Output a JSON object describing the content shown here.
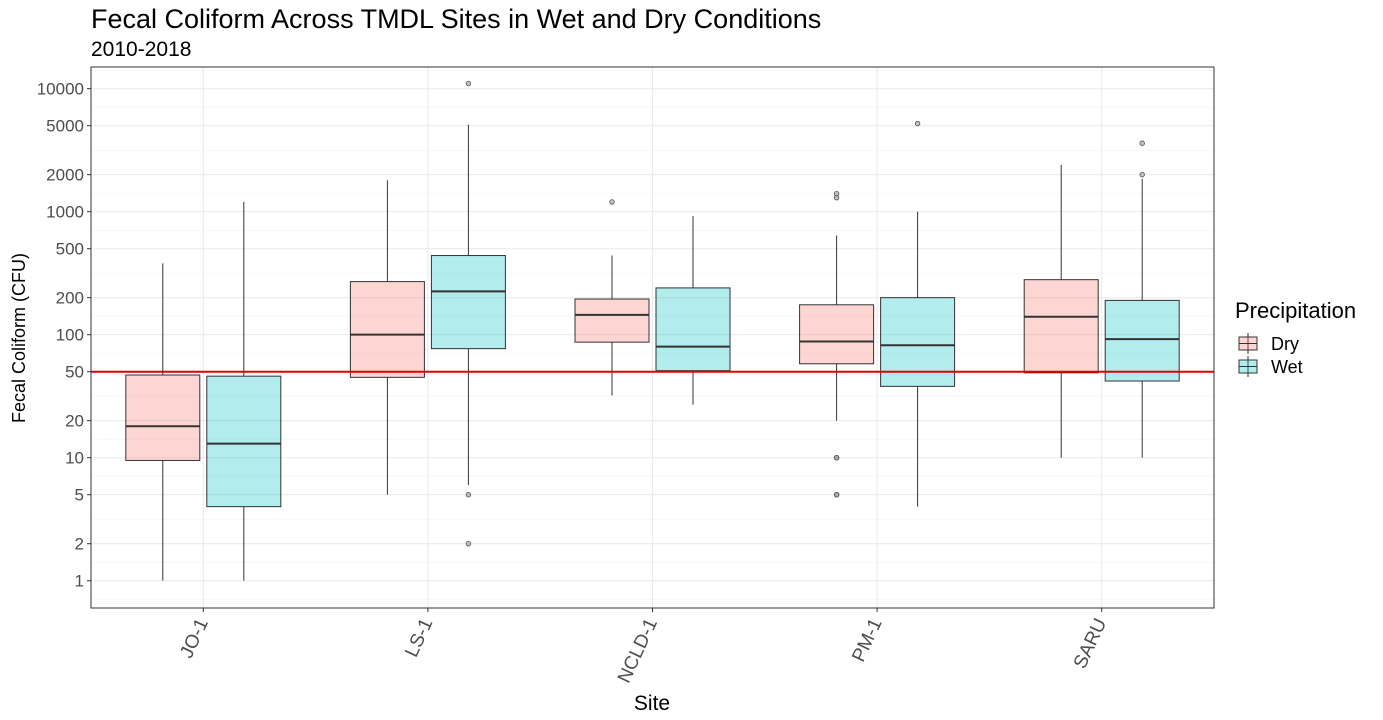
{
  "chart_data": {
    "type": "box",
    "title": "Fecal Coliform Across TMDL Sites in Wet and Dry Conditions",
    "subtitle": "2010-2018",
    "xlabel": "Site",
    "ylabel": "Fecal Coliform (CFU)",
    "y_scale": "log10",
    "ylim": [
      0.6,
      15000
    ],
    "y_ticks": [
      1,
      2,
      5,
      10,
      20,
      50,
      100,
      200,
      500,
      1000,
      2000,
      5000,
      10000
    ],
    "y_tick_labels": [
      "1",
      "2",
      "5",
      "10",
      "20",
      "50",
      "100",
      "200",
      "500",
      "1000",
      "2000",
      "5000",
      "10000"
    ],
    "categories": [
      "JO-1",
      "LS-1",
      "NCLD-1",
      "PM-1",
      "SARU"
    ],
    "legend": {
      "title": "Precipitation",
      "position": "right",
      "entries": [
        {
          "label": "Dry",
          "color": "#F8766D"
        },
        {
          "label": "Wet",
          "color": "#00BFC4"
        }
      ]
    },
    "reference_line": {
      "y": 50,
      "color": "#e00000"
    },
    "grid": true,
    "series": [
      {
        "name": "Dry",
        "color": "#F8766D",
        "boxes": [
          {
            "site": "JO-1",
            "min": 1,
            "q1": 9.5,
            "median": 18,
            "q3": 47,
            "max": 380,
            "outliers": []
          },
          {
            "site": "LS-1",
            "min": 5,
            "q1": 45,
            "median": 100,
            "q3": 270,
            "max": 1800,
            "outliers": []
          },
          {
            "site": "NCLD-1",
            "min": 32,
            "q1": 87,
            "median": 145,
            "q3": 195,
            "max": 440,
            "outliers": [
              1200
            ]
          },
          {
            "site": "PM-1",
            "min": 20,
            "q1": 58,
            "median": 88,
            "q3": 175,
            "max": 640,
            "outliers": [
              1400,
              1300,
              10,
              10,
              5,
              5
            ]
          },
          {
            "site": "SARU",
            "min": 10,
            "q1": 49,
            "median": 140,
            "q3": 280,
            "max": 2400,
            "outliers": []
          }
        ]
      },
      {
        "name": "Wet",
        "color": "#00BFC4",
        "boxes": [
          {
            "site": "JO-1",
            "min": 1,
            "q1": 4,
            "median": 13,
            "q3": 46,
            "max": 1200,
            "outliers": []
          },
          {
            "site": "LS-1",
            "min": 6,
            "q1": 77,
            "median": 225,
            "q3": 440,
            "max": 5100,
            "outliers": [
              11000,
              5,
              2
            ]
          },
          {
            "site": "NCLD-1",
            "min": 27,
            "q1": 51,
            "median": 80,
            "q3": 240,
            "max": 920,
            "outliers": []
          },
          {
            "site": "PM-1",
            "min": 4,
            "q1": 38,
            "median": 82,
            "q3": 200,
            "max": 1000,
            "outliers": [
              5200
            ]
          },
          {
            "site": "SARU",
            "min": 10,
            "q1": 42,
            "median": 92,
            "q3": 190,
            "max": 1850,
            "outliers": [
              3600,
              2000
            ]
          }
        ]
      }
    ]
  }
}
